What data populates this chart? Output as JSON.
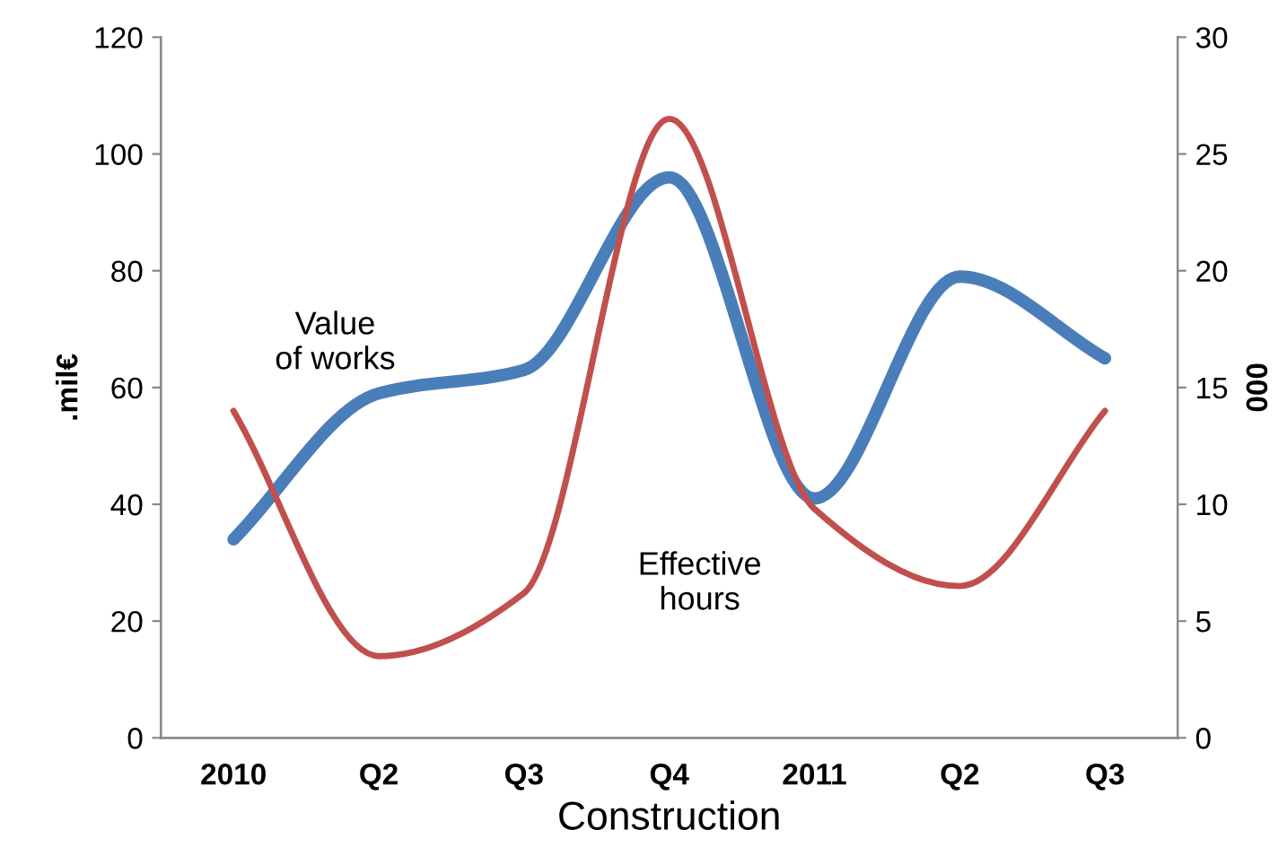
{
  "chart_data": {
    "type": "line",
    "xlabel": "Construction",
    "ylabel": ".mil€",
    "y2label": "000",
    "categories": [
      "2010",
      "Q2",
      "Q3",
      "Q4",
      "2011",
      "Q2",
      "Q3"
    ],
    "series": [
      {
        "name": "Value of works",
        "color": "#4a7ebb",
        "values": [
          34,
          59,
          63,
          96,
          41,
          79,
          65
        ]
      },
      {
        "name": "Effective hours",
        "color": "#c0504d",
        "axis": "y2",
        "values": [
          14,
          3.5,
          6.2,
          26.5,
          9.8,
          6.5,
          14
        ]
      }
    ],
    "ylim": [
      0,
      120
    ],
    "yticks": [
      0,
      20,
      40,
      60,
      80,
      100,
      120
    ],
    "y2lim": [
      0,
      30
    ],
    "y2ticks": [
      0,
      5,
      10,
      15,
      20,
      25,
      30
    ],
    "grid": false,
    "legend": false,
    "marker": "none",
    "line_style": "solid"
  }
}
